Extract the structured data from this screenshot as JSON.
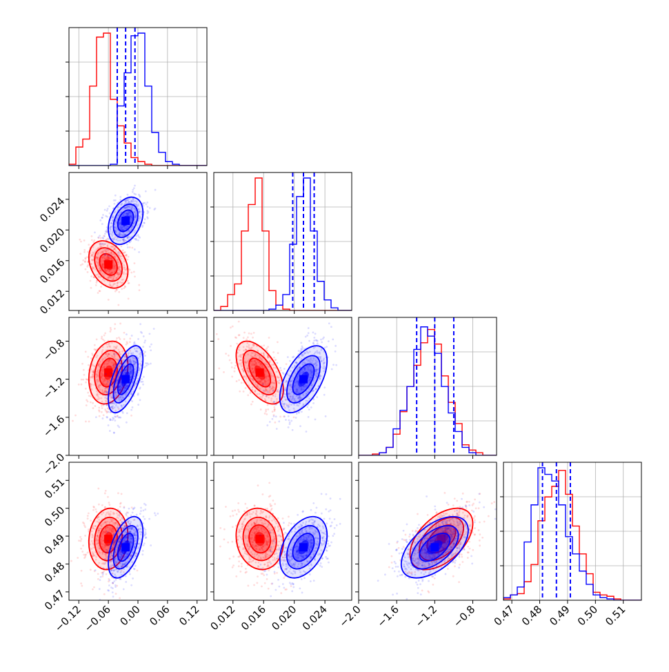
{
  "chart_data": {
    "type": "corner",
    "grid": true,
    "colors": {
      "series_a": "#0000ff",
      "series_b": "#ff0000"
    },
    "series": [
      {
        "color": "#0000ff",
        "centers": [
          -0.025,
          0.0212,
          -1.2,
          0.486
        ],
        "stds": [
          0.016,
          0.0014,
          0.16,
          0.005
        ],
        "quantile_lines": [
          [
            -0.042,
            -0.025,
            -0.006
          ],
          [
            0.0198,
            0.0212,
            0.0226
          ],
          [
            -1.39,
            -1.2,
            -1.0
          ],
          [
            0.481,
            0.486,
            0.491
          ]
        ]
      },
      {
        "color": "#ff0000",
        "centers": [
          -0.06,
          0.0155,
          -1.13,
          0.489
        ],
        "stds": [
          0.018,
          0.0014,
          0.15,
          0.005
        ]
      }
    ],
    "correlations_blue": {
      "0-1": 0.35,
      "0-2": 0.6,
      "0-3": 0.5,
      "1-2": 0.55,
      "1-3": 0.4,
      "2-3": 0.55
    },
    "correlations_red": {
      "0-1": -0.3,
      "0-2": 0.2,
      "0-3": 0.1,
      "1-2": -0.55,
      "1-3": -0.1,
      "2-3": 0.5
    },
    "hist_blue": [
      [
        0,
        0,
        0,
        0,
        0,
        0,
        0.01,
        0.45,
        0.7,
        0.98,
        1.0,
        0.6,
        0.25,
        0.1,
        0.03,
        0.01,
        0,
        0,
        0,
        0
      ],
      [
        0,
        0,
        0,
        0,
        0,
        0,
        0,
        0,
        0.01,
        0.04,
        0.12,
        0.5,
        0.86,
        1.0,
        0.6,
        0.22,
        0.08,
        0.02,
        0,
        0
      ],
      [
        0,
        0,
        0,
        0.02,
        0.06,
        0.2,
        0.34,
        0.52,
        0.8,
        0.97,
        0.9,
        0.77,
        0.52,
        0.32,
        0.18,
        0.06,
        0.02,
        0,
        0,
        0
      ],
      [
        0.02,
        0.04,
        0.1,
        0.44,
        0.72,
        1.0,
        0.95,
        0.9,
        0.72,
        0.48,
        0.35,
        0.22,
        0.12,
        0.04,
        0.02,
        0.01,
        0,
        0,
        0,
        0
      ]
    ],
    "hist_red": [
      [
        0.01,
        0.14,
        0.2,
        0.6,
        0.97,
        1.0,
        0.5,
        0.3,
        0.17,
        0.06,
        0.03,
        0.01,
        0,
        0,
        0,
        0,
        0,
        0,
        0,
        0
      ],
      [
        0,
        0.03,
        0.12,
        0.2,
        0.6,
        0.8,
        1.0,
        0.6,
        0.15,
        0.04,
        0.01,
        0,
        0,
        0,
        0,
        0,
        0,
        0,
        0,
        0
      ],
      [
        0,
        0,
        0.01,
        0.02,
        0.06,
        0.16,
        0.33,
        0.52,
        0.68,
        0.85,
        0.95,
        0.84,
        0.6,
        0.4,
        0.24,
        0.08,
        0.04,
        0.02,
        0,
        0
      ],
      [
        0.01,
        0.04,
        0.05,
        0.14,
        0.27,
        0.6,
        0.78,
        0.86,
        0.98,
        0.8,
        0.56,
        0.35,
        0.2,
        0.06,
        0.04,
        0.03,
        0.01,
        0,
        0,
        0
      ]
    ],
    "parameters": [
      {
        "range": [
          -0.14,
          0.14
        ],
        "ticks": [
          -0.12,
          -0.06,
          0.0,
          0.06,
          0.12
        ],
        "tick_labels": [
          "−0.12",
          "−0.06",
          "0.00",
          "0.06",
          "0.12"
        ]
      },
      {
        "range": [
          0.0095,
          0.0275
        ],
        "ticks": [
          0.012,
          0.016,
          0.02,
          0.024
        ],
        "tick_labels": [
          "0.012",
          "0.016",
          "0.020",
          "0.024"
        ]
      },
      {
        "range": [
          -2.0,
          -0.55
        ],
        "ticks": [
          -2.0,
          -1.6,
          -1.2,
          -0.8
        ],
        "tick_labels": [
          "−2.0",
          "−1.6",
          "−1.2",
          "−0.8"
        ]
      },
      {
        "range": [
          0.467,
          0.5165
        ],
        "ticks": [
          0.47,
          0.48,
          0.49,
          0.5,
          0.51
        ],
        "tick_labels": [
          "0.47",
          "0.48",
          "0.49",
          "0.50",
          "0.51"
        ]
      }
    ]
  }
}
